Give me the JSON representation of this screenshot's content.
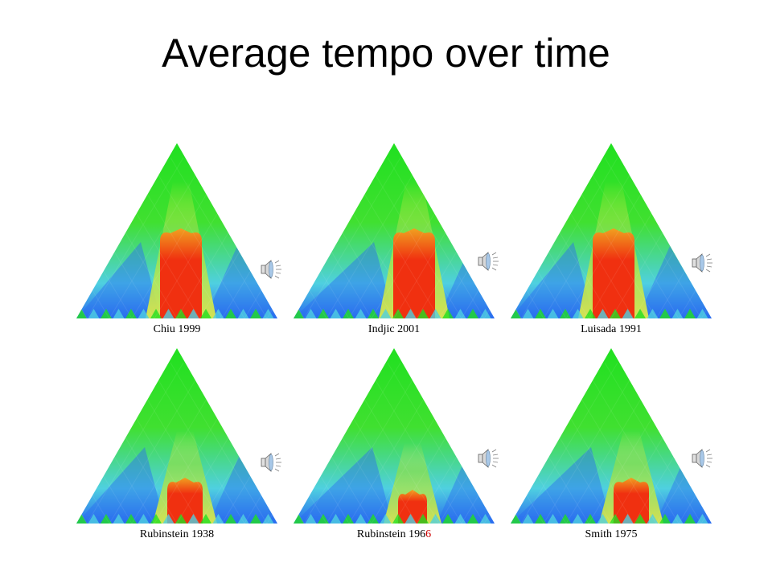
{
  "slide": {
    "title": "Average tempo over time"
  },
  "panels": [
    {
      "caption": "Chiu 1999",
      "peak_intensity": "high"
    },
    {
      "caption": "Indjic 2001",
      "peak_intensity": "high"
    },
    {
      "caption": "Luisada 1991",
      "peak_intensity": "high"
    },
    {
      "caption": "Rubinstein 1938",
      "peak_intensity": "medium"
    },
    {
      "caption_prefix": "Rubinstein 196",
      "caption_suffix": "6",
      "peak_intensity": "low"
    },
    {
      "caption": "Smith 1975",
      "peak_intensity": "medium"
    }
  ],
  "icons": {
    "audio": "speaker-icon"
  },
  "colors": {
    "apex": "#20e020",
    "mid": "#8fe04a",
    "blue": "#2a6cf0",
    "cyan": "#4fd0e0",
    "red": "#f03010",
    "orange": "#f0a020",
    "yellow": "#e8f040"
  }
}
